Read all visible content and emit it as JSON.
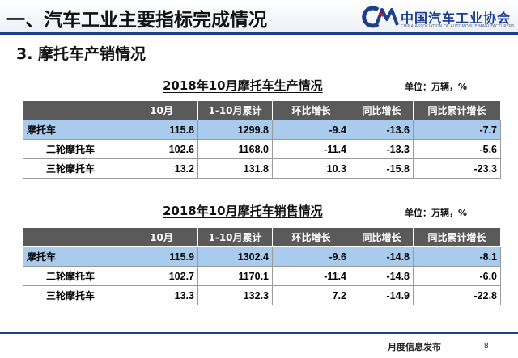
{
  "header": {
    "title": "一、汽车工业主要指标完成情况",
    "logo_cn": "中国汽车工业协会",
    "logo_en": "CHINA ASSOCIATION OF AUTOMOBILE MANUFACTURERS",
    "logo_mark": "CM",
    "colors": {
      "brand": "#1e3f8c",
      "logo_accent": "#c8242b"
    }
  },
  "section_title": "3. 摩托车产销情况",
  "production": {
    "title": "2018年10月摩托车生产情况",
    "unit": "单位：万辆，%",
    "headers": [
      "",
      "10月",
      "1-10月累计",
      "环比增长",
      "同比增长",
      "同比累计增长"
    ],
    "rows": [
      [
        "摩托车",
        "115.8",
        "1299.8",
        "-9.4",
        "-13.6",
        "-7.7"
      ],
      [
        "二轮摩托车",
        "102.6",
        "1168.0",
        "-11.4",
        "-13.3",
        "-5.6"
      ],
      [
        "三轮摩托车",
        "13.2",
        "131.8",
        "10.3",
        "-15.8",
        "-23.3"
      ]
    ]
  },
  "sales": {
    "title": "2018年10月摩托车销售情况",
    "unit": "单位：万辆，%",
    "headers": [
      "",
      "10月",
      "1-10月累计",
      "环比增长",
      "同比增长",
      "同比累计增长"
    ],
    "rows": [
      [
        "摩托车",
        "115.9",
        "1302.4",
        "-9.6",
        "-14.8",
        "-8.1"
      ],
      [
        "二轮摩托车",
        "102.7",
        "1170.1",
        "-11.4",
        "-14.8",
        "-6.0"
      ],
      [
        "三轮摩托车",
        "13.3",
        "132.3",
        "7.2",
        "-14.9",
        "-22.8"
      ]
    ]
  },
  "table_colors": {
    "header_bg": "#5a5a5a",
    "highlight_row": "#a9ccee"
  },
  "footer": {
    "text": "月度信息发布",
    "page": "8"
  }
}
